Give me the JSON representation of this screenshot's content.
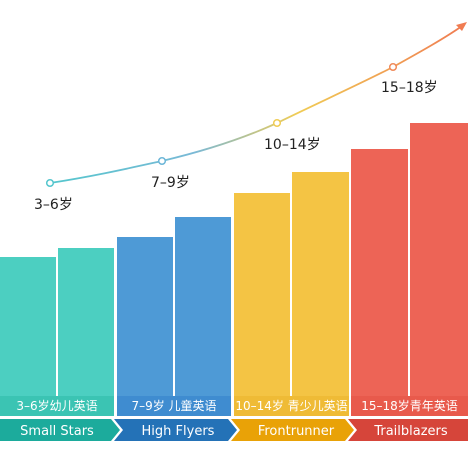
{
  "stages": [
    {
      "key": "small",
      "name": "Small Stars",
      "age_range": "3–6岁幼儿英语",
      "point_label": "3–6岁",
      "colors": {
        "bar": "#4ccfc1",
        "bar_dark": "#3bc4b3",
        "chevron": "#1cab9c"
      }
    },
    {
      "key": "high",
      "name": "High Flyers",
      "age_range": "7–9岁 儿童英语",
      "point_label": "7–9岁",
      "colors": {
        "bar": "#4e9ad6",
        "bar_dark": "#3f8cd0",
        "chevron": "#2472b7"
      }
    },
    {
      "key": "front",
      "name": "Frontrunner",
      "age_range": "10–14岁 青少儿英语",
      "point_label": "10–14岁",
      "colors": {
        "bar": "#f4c444",
        "bar_dark": "#efbb36",
        "chevron": "#e9a207"
      }
    },
    {
      "key": "trail",
      "name": "Trailblazers",
      "age_range": "15–18岁青年英语",
      "point_label": "15–18岁",
      "colors": {
        "bar": "#ed6456",
        "bar_dark": "#e85a4c",
        "chevron": "#d6453a"
      }
    }
  ],
  "curve_colors": [
    "#54c6cd",
    "#6cb6d8",
    "#f0cc55",
    "#f08a5a"
  ]
}
